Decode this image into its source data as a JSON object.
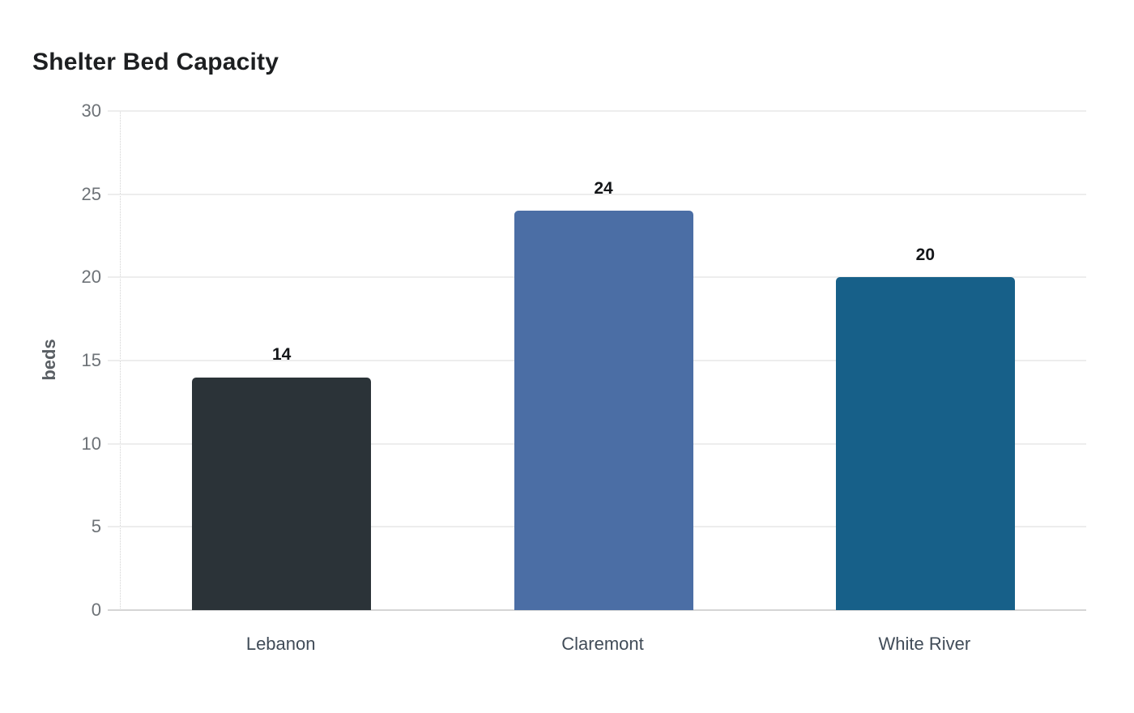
{
  "page": {
    "background_color": "#ffffff"
  },
  "chart_data": {
    "type": "bar",
    "title": "Shelter Bed Capacity",
    "xlabel": "",
    "ylabel": "beds",
    "categories": [
      "Lebanon",
      "Claremont",
      "White River"
    ],
    "values": [
      14,
      24,
      20
    ],
    "value_labels": [
      "14",
      "24",
      "20"
    ],
    "bar_colors": [
      "#2b3338",
      "#4b6ea5",
      "#176089"
    ],
    "ylim": [
      0,
      30
    ],
    "yticks": [
      0,
      5,
      10,
      15,
      20,
      25,
      30
    ],
    "grid": "horizontal",
    "legend": "none",
    "style_colors": {
      "title_text": "#1d1f21",
      "value_label_text": "#141619",
      "y_tick_text": "#6d7277",
      "x_tick_text": "#414c58",
      "y_axis_label_text": "#595e63",
      "gridline": "#ededed",
      "baseline": "#d5d5d5",
      "axis_dotted_line": "#d2d2d2"
    }
  }
}
